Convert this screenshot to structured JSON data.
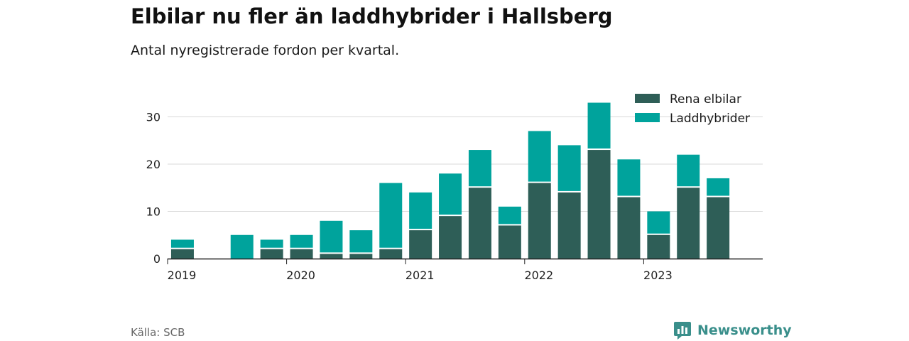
{
  "title": "Elbilar nu fler än laddhybrider i Hallsberg",
  "subtitle": "Antal nyregistrerade fordon per kvartal.",
  "source": "Källa: SCB",
  "brand": "Newsworthy",
  "colors": {
    "electric": "#2e5e57",
    "hybrid": "#00a39c",
    "grid": "#d9d9d9",
    "axis": "#222222",
    "brand": "#3a8f8b"
  },
  "chart_data": {
    "type": "bar",
    "stacked": true,
    "categories": [
      "2019 Q1",
      "2019 Q2",
      "2019 Q3",
      "2019 Q4",
      "2020 Q1",
      "2020 Q2",
      "2020 Q3",
      "2020 Q4",
      "2021 Q1",
      "2021 Q2",
      "2021 Q3",
      "2021 Q4",
      "2022 Q1",
      "2022 Q2",
      "2022 Q3",
      "2022 Q4",
      "2023 Q1",
      "2023 Q2",
      "2023 Q3",
      "2023 Q4"
    ],
    "series": [
      {
        "name": "Rena elbilar",
        "values": [
          2,
          0,
          0,
          2,
          2,
          1,
          1,
          2,
          6,
          9,
          15,
          7,
          16,
          14,
          23,
          13,
          5,
          15,
          13,
          0
        ]
      },
      {
        "name": "Laddhybrider",
        "values": [
          2,
          0,
          5,
          2,
          3,
          7,
          5,
          14,
          8,
          9,
          8,
          4,
          11,
          10,
          10,
          8,
          5,
          7,
          4,
          0
        ]
      }
    ],
    "x_ticks": [
      "2019",
      "2020",
      "2021",
      "2022",
      "2023"
    ],
    "y_ticks": [
      "0",
      "10",
      "20",
      "30"
    ],
    "ylim": [
      0,
      34
    ],
    "legend_position": "top-right",
    "xlabel": "",
    "ylabel": ""
  }
}
